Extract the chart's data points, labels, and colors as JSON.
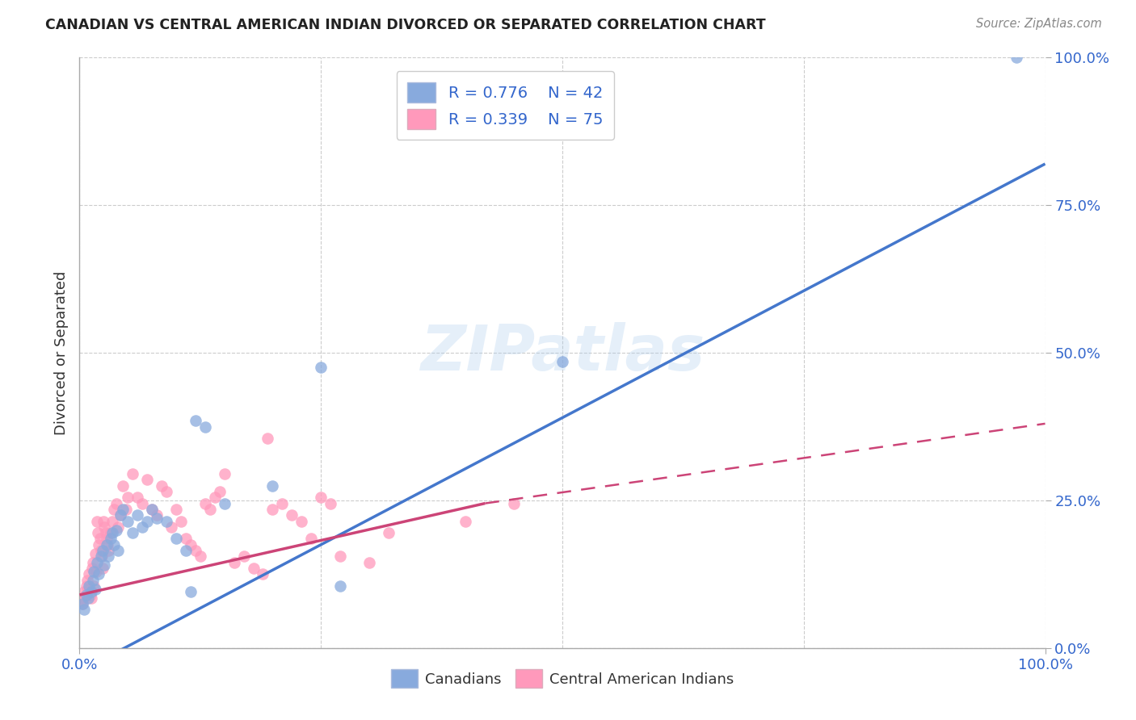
{
  "title": "CANADIAN VS CENTRAL AMERICAN INDIAN DIVORCED OR SEPARATED CORRELATION CHART",
  "source": "Source: ZipAtlas.com",
  "ylabel": "Divorced or Separated",
  "xlim": [
    0,
    1
  ],
  "ylim": [
    0,
    1
  ],
  "xtick_positions": [
    0.0,
    1.0
  ],
  "xtick_labels": [
    "0.0%",
    "100.0%"
  ],
  "ytick_positions": [
    0.0,
    0.25,
    0.5,
    0.75,
    1.0
  ],
  "ytick_labels": [
    "0.0%",
    "25.0%",
    "50.0%",
    "75.0%",
    "100.0%"
  ],
  "grid_ticks": [
    0.0,
    0.25,
    0.5,
    0.75,
    1.0
  ],
  "blue_color": "#88AADD",
  "pink_color": "#FF99BB",
  "blue_line_color": "#4477CC",
  "pink_line_color": "#CC4477",
  "R_blue": 0.776,
  "N_blue": 42,
  "R_pink": 0.339,
  "N_pink": 75,
  "legend_label_blue": "Canadians",
  "legend_label_pink": "Central American Indians",
  "watermark": "ZIPatlas",
  "background_color": "#FFFFFF",
  "blue_line": [
    [
      0.0,
      -0.04
    ],
    [
      1.0,
      0.82
    ]
  ],
  "pink_line_solid": [
    [
      0.0,
      0.09
    ],
    [
      0.42,
      0.245
    ]
  ],
  "pink_line_dashed": [
    [
      0.42,
      0.245
    ],
    [
      1.0,
      0.38
    ]
  ],
  "blue_scatter": [
    [
      0.003,
      0.075
    ],
    [
      0.005,
      0.065
    ],
    [
      0.007,
      0.09
    ],
    [
      0.009,
      0.085
    ],
    [
      0.01,
      0.105
    ],
    [
      0.012,
      0.095
    ],
    [
      0.014,
      0.115
    ],
    [
      0.015,
      0.13
    ],
    [
      0.016,
      0.1
    ],
    [
      0.018,
      0.145
    ],
    [
      0.02,
      0.125
    ],
    [
      0.022,
      0.155
    ],
    [
      0.024,
      0.165
    ],
    [
      0.026,
      0.14
    ],
    [
      0.028,
      0.175
    ],
    [
      0.03,
      0.155
    ],
    [
      0.032,
      0.185
    ],
    [
      0.034,
      0.195
    ],
    [
      0.036,
      0.175
    ],
    [
      0.038,
      0.2
    ],
    [
      0.04,
      0.165
    ],
    [
      0.042,
      0.225
    ],
    [
      0.045,
      0.235
    ],
    [
      0.05,
      0.215
    ],
    [
      0.055,
      0.195
    ],
    [
      0.06,
      0.225
    ],
    [
      0.065,
      0.205
    ],
    [
      0.07,
      0.215
    ],
    [
      0.075,
      0.235
    ],
    [
      0.08,
      0.22
    ],
    [
      0.09,
      0.215
    ],
    [
      0.1,
      0.185
    ],
    [
      0.11,
      0.165
    ],
    [
      0.115,
      0.095
    ],
    [
      0.12,
      0.385
    ],
    [
      0.13,
      0.375
    ],
    [
      0.15,
      0.245
    ],
    [
      0.2,
      0.275
    ],
    [
      0.25,
      0.475
    ],
    [
      0.27,
      0.105
    ],
    [
      0.5,
      0.485
    ],
    [
      0.97,
      1.0
    ]
  ],
  "pink_scatter": [
    [
      0.002,
      0.08
    ],
    [
      0.003,
      0.075
    ],
    [
      0.004,
      0.085
    ],
    [
      0.005,
      0.095
    ],
    [
      0.006,
      0.09
    ],
    [
      0.007,
      0.105
    ],
    [
      0.008,
      0.115
    ],
    [
      0.009,
      0.1
    ],
    [
      0.01,
      0.125
    ],
    [
      0.011,
      0.09
    ],
    [
      0.012,
      0.085
    ],
    [
      0.013,
      0.135
    ],
    [
      0.014,
      0.145
    ],
    [
      0.015,
      0.105
    ],
    [
      0.016,
      0.16
    ],
    [
      0.017,
      0.13
    ],
    [
      0.018,
      0.215
    ],
    [
      0.019,
      0.195
    ],
    [
      0.02,
      0.175
    ],
    [
      0.021,
      0.185
    ],
    [
      0.022,
      0.165
    ],
    [
      0.023,
      0.155
    ],
    [
      0.024,
      0.135
    ],
    [
      0.025,
      0.215
    ],
    [
      0.026,
      0.205
    ],
    [
      0.027,
      0.195
    ],
    [
      0.028,
      0.185
    ],
    [
      0.029,
      0.175
    ],
    [
      0.03,
      0.165
    ],
    [
      0.032,
      0.195
    ],
    [
      0.034,
      0.215
    ],
    [
      0.036,
      0.235
    ],
    [
      0.038,
      0.245
    ],
    [
      0.04,
      0.205
    ],
    [
      0.042,
      0.225
    ],
    [
      0.045,
      0.275
    ],
    [
      0.048,
      0.235
    ],
    [
      0.05,
      0.255
    ],
    [
      0.055,
      0.295
    ],
    [
      0.06,
      0.255
    ],
    [
      0.065,
      0.245
    ],
    [
      0.07,
      0.285
    ],
    [
      0.075,
      0.235
    ],
    [
      0.08,
      0.225
    ],
    [
      0.085,
      0.275
    ],
    [
      0.09,
      0.265
    ],
    [
      0.095,
      0.205
    ],
    [
      0.1,
      0.235
    ],
    [
      0.105,
      0.215
    ],
    [
      0.11,
      0.185
    ],
    [
      0.115,
      0.175
    ],
    [
      0.12,
      0.165
    ],
    [
      0.125,
      0.155
    ],
    [
      0.13,
      0.245
    ],
    [
      0.135,
      0.235
    ],
    [
      0.14,
      0.255
    ],
    [
      0.145,
      0.265
    ],
    [
      0.15,
      0.295
    ],
    [
      0.16,
      0.145
    ],
    [
      0.17,
      0.155
    ],
    [
      0.18,
      0.135
    ],
    [
      0.19,
      0.125
    ],
    [
      0.195,
      0.355
    ],
    [
      0.2,
      0.235
    ],
    [
      0.21,
      0.245
    ],
    [
      0.22,
      0.225
    ],
    [
      0.23,
      0.215
    ],
    [
      0.24,
      0.185
    ],
    [
      0.25,
      0.255
    ],
    [
      0.26,
      0.245
    ],
    [
      0.27,
      0.155
    ],
    [
      0.3,
      0.145
    ],
    [
      0.32,
      0.195
    ],
    [
      0.4,
      0.215
    ],
    [
      0.45,
      0.245
    ]
  ]
}
